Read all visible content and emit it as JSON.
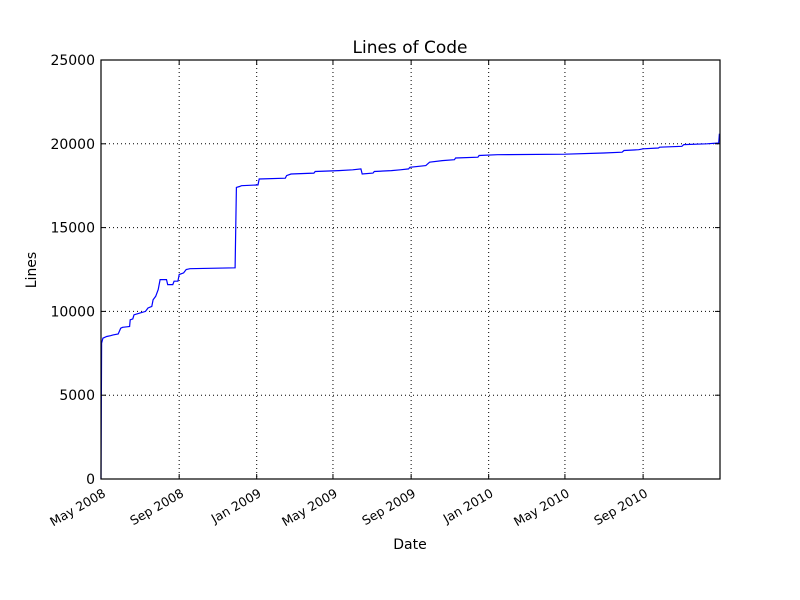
{
  "chart_data": {
    "type": "line",
    "title": "Lines of Code",
    "xlabel": "Date",
    "ylabel": "Lines",
    "ylim": [
      0,
      25000
    ],
    "yticks": [
      0,
      5000,
      10000,
      15000,
      20000,
      25000
    ],
    "xticks": [
      "May 2008",
      "Sep 2008",
      "Jan 2009",
      "May 2009",
      "Sep 2009",
      "Jan 2010",
      "May 2010",
      "Sep 2010"
    ],
    "grid": true,
    "line_color": "#0000ff",
    "series": [
      {
        "name": "Lines",
        "points": [
          [
            "2008-05-01",
            0
          ],
          [
            "2008-05-02",
            8100
          ],
          [
            "2008-05-04",
            8400
          ],
          [
            "2008-05-10",
            8500
          ],
          [
            "2008-05-16",
            8550
          ],
          [
            "2008-05-20",
            8600
          ],
          [
            "2008-05-28",
            8650
          ],
          [
            "2008-06-01",
            9000
          ],
          [
            "2008-06-04",
            9050
          ],
          [
            "2008-06-15",
            9100
          ],
          [
            "2008-06-16",
            9500
          ],
          [
            "2008-06-20",
            9550
          ],
          [
            "2008-06-22",
            9800
          ],
          [
            "2008-07-01",
            9900
          ],
          [
            "2008-07-10",
            10000
          ],
          [
            "2008-07-14",
            10200
          ],
          [
            "2008-07-20",
            10300
          ],
          [
            "2008-07-22",
            10700
          ],
          [
            "2008-07-26",
            10900
          ],
          [
            "2008-07-30",
            11300
          ],
          [
            "2008-08-02",
            11900
          ],
          [
            "2008-08-12",
            11900
          ],
          [
            "2008-08-14",
            11600
          ],
          [
            "2008-08-22",
            11600
          ],
          [
            "2008-08-24",
            11800
          ],
          [
            "2008-08-30",
            11800
          ],
          [
            "2008-09-01",
            12200
          ],
          [
            "2008-09-08",
            12300
          ],
          [
            "2008-09-12",
            12500
          ],
          [
            "2008-09-18",
            12550
          ],
          [
            "2008-11-28",
            12600
          ],
          [
            "2008-11-30",
            17400
          ],
          [
            "2008-12-05",
            17450
          ],
          [
            "2008-12-08",
            17500
          ],
          [
            "2009-01-03",
            17550
          ],
          [
            "2009-01-05",
            17900
          ],
          [
            "2009-02-15",
            17950
          ],
          [
            "2009-02-17",
            18100
          ],
          [
            "2009-02-24",
            18200
          ],
          [
            "2009-04-01",
            18250
          ],
          [
            "2009-04-03",
            18350
          ],
          [
            "2009-05-10",
            18400
          ],
          [
            "2009-06-01",
            18450
          ],
          [
            "2009-06-14",
            18500
          ],
          [
            "2009-06-16",
            18200
          ],
          [
            "2009-07-03",
            18250
          ],
          [
            "2009-07-05",
            18350
          ],
          [
            "2009-08-01",
            18400
          ],
          [
            "2009-08-15",
            18450
          ],
          [
            "2009-08-28",
            18500
          ],
          [
            "2009-08-30",
            18600
          ],
          [
            "2009-09-24",
            18700
          ],
          [
            "2009-09-30",
            18900
          ],
          [
            "2009-10-20",
            19000
          ],
          [
            "2009-11-08",
            19050
          ],
          [
            "2009-11-10",
            19150
          ],
          [
            "2009-12-15",
            19200
          ],
          [
            "2009-12-17",
            19300
          ],
          [
            "2010-01-15",
            19350
          ],
          [
            "2010-05-01",
            19380
          ],
          [
            "2010-07-01",
            19450
          ],
          [
            "2010-07-30",
            19500
          ],
          [
            "2010-08-02",
            19600
          ],
          [
            "2010-08-25",
            19650
          ],
          [
            "2010-09-01",
            19700
          ],
          [
            "2010-09-25",
            19750
          ],
          [
            "2010-09-27",
            19800
          ],
          [
            "2010-11-01",
            19850
          ],
          [
            "2010-11-04",
            19950
          ],
          [
            "2010-12-10",
            20000
          ],
          [
            "2010-12-29",
            20050
          ],
          [
            "2010-12-30",
            20600
          ]
        ]
      }
    ]
  }
}
